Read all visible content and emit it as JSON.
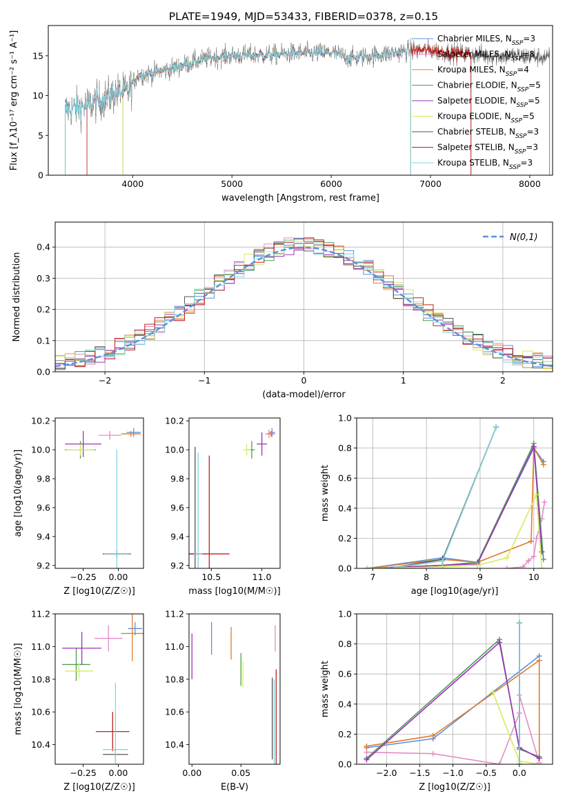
{
  "figure_title": "PLATE=1949, MJD=53433, FIBERID=0378, z=0.15",
  "colors": {
    "Chabrier MILES": "#5b8fd9",
    "Salpeter MILES": "#e58ac4",
    "Kroupa MILES": "#e07b2a",
    "Chabrier ELODIE": "#4d9a58",
    "Salpeter ELODIE": "#9a32b8",
    "Kroupa ELODIE": "#d2ec5a",
    "Chabrier STELIB": "#555555",
    "Salpeter STELIB": "#c31e1e",
    "Kroupa STELIB": "#7dd6e3"
  },
  "chart_data": [
    {
      "id": "spectrum",
      "type": "line",
      "xlabel": "wavelength [Angstrom, rest frame]",
      "ylabel": "Flux [f_λ10⁻¹⁷ erg cm⁻² s⁻¹ A⁻¹]",
      "xlim": [
        3150,
        8230
      ],
      "ylim": [
        0,
        18.8
      ],
      "xticks": [
        4000,
        5000,
        6000,
        7000,
        8000
      ],
      "yticks": [
        0,
        5,
        10,
        15
      ],
      "legend": [
        {
          "label": "Chabrier MILES, N_SSP=3",
          "model": "Chabrier MILES"
        },
        {
          "label": "Salpeter MILES, N_SSP=8",
          "model": "Salpeter MILES"
        },
        {
          "label": "Kroupa MILES, N_SSP=4",
          "model": "Kroupa MILES"
        },
        {
          "label": "Chabrier ELODIE, N_SSP=5",
          "model": "Chabrier ELODIE"
        },
        {
          "label": "Salpeter ELODIE, N_SSP=5",
          "model": "Salpeter ELODIE"
        },
        {
          "label": "Kroupa ELODIE, N_SSP=5",
          "model": "Kroupa ELODIE"
        },
        {
          "label": "Chabrier STELIB, N_SSP=3",
          "model": "Chabrier STELIB"
        },
        {
          "label": "Salpeter STELIB, N_SSP=3",
          "model": "Salpeter STELIB"
        },
        {
          "label": "Kroupa STELIB, N_SSP=3",
          "model": "Kroupa STELIB"
        }
      ],
      "legend_position": "upper right",
      "data_color": "#808080",
      "continuum": [
        [
          3320,
          8.2
        ],
        [
          3500,
          8.6
        ],
        [
          3700,
          9.5
        ],
        [
          3850,
          10.4
        ],
        [
          3950,
          10.4
        ],
        [
          4050,
          12.6
        ],
        [
          4200,
          12.8
        ],
        [
          4400,
          13.4
        ],
        [
          4600,
          14.2
        ],
        [
          4800,
          14.8
        ],
        [
          5000,
          15.0
        ],
        [
          5200,
          15.1
        ],
        [
          5400,
          15.1
        ],
        [
          5600,
          15.3
        ],
        [
          5800,
          15.3
        ],
        [
          6000,
          15.4
        ],
        [
          6200,
          14.7
        ],
        [
          6400,
          15.0
        ],
        [
          6600,
          15.3
        ],
        [
          6800,
          15.7
        ],
        [
          7000,
          15.7
        ],
        [
          7200,
          15.4
        ],
        [
          7400,
          15.2
        ],
        [
          7600,
          15.0
        ],
        [
          7800,
          15.0
        ],
        [
          8000,
          14.9
        ],
        [
          8200,
          14.8
        ]
      ],
      "model_ranges": {
        "Chabrier MILES": [
          3540,
          7410
        ],
        "Salpeter MILES": [
          3540,
          7410
        ],
        "Kroupa MILES": [
          3540,
          7410
        ],
        "Chabrier ELODIE": [
          3900,
          6800
        ],
        "Salpeter ELODIE": [
          3900,
          6800
        ],
        "Kroupa ELODIE": [
          3900,
          6800
        ],
        "Chabrier STELIB": [
          3320,
          8200
        ],
        "Salpeter STELIB": [
          3540,
          7410
        ],
        "Kroupa STELIB": [
          3320,
          6800
        ]
      }
    },
    {
      "id": "residuals",
      "type": "histogram",
      "xlabel": "(data-model)/error",
      "ylabel": "Normed distribution",
      "xlim": [
        -2.5,
        2.5
      ],
      "ylim": [
        0,
        0.48
      ],
      "xticks": [
        -2,
        -1,
        0,
        1,
        2
      ],
      "yticks": [
        0.0,
        0.1,
        0.2,
        0.3,
        0.4
      ],
      "grid": true,
      "reference_label": "N(0,1)",
      "reference_color": "#5b8fd9",
      "legend_position": "upper right"
    },
    {
      "id": "age_vs_Z",
      "type": "errorbar",
      "xlabel": "Z [log10(Z/Z☉)]",
      "ylabel": "age [log10(age/yr)]",
      "xlim": [
        -0.45,
        0.18
      ],
      "ylim": [
        9.18,
        10.22
      ],
      "xticks": [
        -0.25,
        0.0
      ],
      "yticks": [
        9.2,
        9.4,
        9.6,
        9.8,
        10.0,
        10.2
      ],
      "points": [
        {
          "model": "Chabrier MILES",
          "x": 0.11,
          "y": 10.12,
          "xerr": 0.05,
          "yerr": 0.03
        },
        {
          "model": "Salpeter MILES",
          "x": -0.06,
          "y": 10.1,
          "xerr": 0.08,
          "yerr": 0.03
        },
        {
          "model": "Kroupa MILES",
          "x": 0.09,
          "y": 10.11,
          "xerr": 0.07,
          "yerr": 0.02
        },
        {
          "model": "Chabrier ELODIE",
          "x": -0.27,
          "y": 10.0,
          "xerr": 0.11,
          "yerr": 0.06
        },
        {
          "model": "Salpeter ELODIE",
          "x": -0.25,
          "y": 10.04,
          "xerr": 0.13,
          "yerr": 0.09
        },
        {
          "model": "Kroupa ELODIE",
          "x": -0.27,
          "y": 10.0,
          "xerr": 0.1,
          "yerr": 0.04
        },
        {
          "model": "Chabrier STELIB",
          "x": -0.01,
          "y": 9.28,
          "xerr": 0.09,
          "yerr": 0.02
        },
        {
          "model": "Salpeter STELIB",
          "x": -0.01,
          "y": 9.28,
          "xerr": 0.1,
          "yerr": 0.02
        },
        {
          "model": "Kroupa STELIB",
          "x": -0.01,
          "y": 9.28,
          "xerr": 0.09,
          "yerr": 0.72
        }
      ]
    },
    {
      "id": "age_vs_mass",
      "type": "errorbar",
      "xlabel": "mass [log10(M/M☉)]",
      "ylabel": "",
      "xlim": [
        10.28,
        11.18
      ],
      "ylim": [
        9.18,
        10.22
      ],
      "xticks": [
        10.5,
        11.0
      ],
      "yticks": [
        9.2,
        9.4,
        9.6,
        9.8,
        10.0,
        10.2
      ],
      "points": [
        {
          "model": "Chabrier MILES",
          "x": 11.1,
          "y": 10.12,
          "xerr": 0.03,
          "yerr": 0.03
        },
        {
          "model": "Salpeter MILES",
          "x": 11.07,
          "y": 10.11,
          "xerr": 0.04,
          "yerr": 0.03
        },
        {
          "model": "Kroupa MILES",
          "x": 11.09,
          "y": 10.11,
          "xerr": 0.04,
          "yerr": 0.02
        },
        {
          "model": "Chabrier ELODIE",
          "x": 10.9,
          "y": 10.0,
          "xerr": 0.03,
          "yerr": 0.06
        },
        {
          "model": "Salpeter ELODIE",
          "x": 11.0,
          "y": 10.04,
          "xerr": 0.05,
          "yerr": 0.08
        },
        {
          "model": "Kroupa ELODIE",
          "x": 10.85,
          "y": 10.0,
          "xerr": 0.04,
          "yerr": 0.04
        },
        {
          "model": "Chabrier STELIB",
          "x": 10.34,
          "y": 9.28,
          "xerr": 0.06,
          "yerr": 0.74
        },
        {
          "model": "Salpeter STELIB",
          "x": 10.48,
          "y": 9.28,
          "xerr": 0.2,
          "yerr": 0.68
        },
        {
          "model": "Kroupa STELIB",
          "x": 10.37,
          "y": 9.28,
          "xerr": 0.04,
          "yerr": 0.7
        }
      ]
    },
    {
      "id": "weight_vs_age",
      "type": "line",
      "xlabel": "age [log10(age/yr)]",
      "ylabel": "mass weight",
      "xlim": [
        6.7,
        10.35
      ],
      "ylim": [
        0,
        1
      ],
      "xticks": [
        7,
        8,
        9,
        10
      ],
      "yticks": [
        0.0,
        0.2,
        0.4,
        0.6,
        0.8,
        1.0
      ],
      "grid": true,
      "series": [
        {
          "model": "Chabrier MILES",
          "x": [
            6.9,
            8.3,
            8.95,
            10.0,
            10.18
          ],
          "y": [
            0.0,
            0.07,
            0.04,
            0.8,
            0.71
          ]
        },
        {
          "model": "Salpeter MILES",
          "x": [
            9.5,
            9.8,
            9.9,
            10.0,
            10.05,
            10.15,
            10.2
          ],
          "y": [
            0.0,
            0.01,
            0.05,
            0.08,
            0.2,
            0.33,
            0.44
          ]
        },
        {
          "model": "Kroupa MILES",
          "x": [
            6.9,
            8.3,
            8.95,
            9.95,
            10.0,
            10.18
          ],
          "y": [
            0.0,
            0.06,
            0.04,
            0.18,
            0.8,
            0.69
          ]
        },
        {
          "model": "Chabrier ELODIE",
          "x": [
            6.9,
            8.3,
            8.95,
            10.0,
            10.18
          ],
          "y": [
            0.0,
            0.02,
            0.04,
            0.83,
            0.06
          ]
        },
        {
          "model": "Salpeter ELODIE",
          "x": [
            6.9,
            8.3,
            8.95,
            10.0,
            10.15
          ],
          "y": [
            0.0,
            0.02,
            0.03,
            0.81,
            0.11
          ]
        },
        {
          "model": "Kroupa ELODIE",
          "x": [
            6.9,
            8.3,
            8.95,
            9.5,
            10.05,
            10.15
          ],
          "y": [
            0.0,
            0.01,
            0.02,
            0.07,
            0.49,
            0.0
          ]
        },
        {
          "model": "Chabrier STELIB",
          "x": [
            7.3,
            8.3,
            9.3
          ],
          "y": [
            0.0,
            0.06,
            0.94
          ]
        },
        {
          "model": "Salpeter STELIB",
          "x": [
            7.3,
            8.3,
            9.3
          ],
          "y": [
            0.0,
            0.05,
            0.94
          ]
        },
        {
          "model": "Kroupa STELIB",
          "x": [
            7.3,
            8.3,
            9.3
          ],
          "y": [
            0.0,
            0.05,
            0.94
          ]
        }
      ]
    },
    {
      "id": "mass_vs_Z",
      "type": "errorbar",
      "xlabel": "Z [log10(Z/Z☉)]",
      "ylabel": "mass [log10(M/M☉)]",
      "xlim": [
        -0.45,
        0.18
      ],
      "ylim": [
        10.28,
        11.2
      ],
      "xticks": [
        -0.25,
        0.0
      ],
      "yticks": [
        10.4,
        10.6,
        10.8,
        11.0,
        11.2
      ],
      "points": [
        {
          "model": "Chabrier MILES",
          "x": 0.12,
          "y": 11.11,
          "xerr": 0.05,
          "yerr": 0.04
        },
        {
          "model": "Salpeter MILES",
          "x": -0.07,
          "y": 11.05,
          "xerr": 0.1,
          "yerr": 0.08
        },
        {
          "model": "Kroupa MILES",
          "x": 0.1,
          "y": 11.08,
          "xerr": 0.08,
          "yerr": 0.17
        },
        {
          "model": "Chabrier ELODIE",
          "x": -0.3,
          "y": 10.89,
          "xerr": 0.1,
          "yerr": 0.1
        },
        {
          "model": "Salpeter ELODIE",
          "x": -0.26,
          "y": 10.99,
          "xerr": 0.14,
          "yerr": 0.1
        },
        {
          "model": "Kroupa ELODIE",
          "x": -0.28,
          "y": 10.85,
          "xerr": 0.1,
          "yerr": 0.05
        },
        {
          "model": "Chabrier STELIB",
          "x": -0.02,
          "y": 10.34,
          "xerr": 0.09,
          "yerr": 0.04
        },
        {
          "model": "Salpeter STELIB",
          "x": -0.04,
          "y": 10.48,
          "xerr": 0.12,
          "yerr": 0.12
        },
        {
          "model": "Kroupa STELIB",
          "x": -0.02,
          "y": 10.37,
          "xerr": 0.09,
          "yerr": 0.41
        }
      ]
    },
    {
      "id": "mass_vs_ebv",
      "type": "errorbar",
      "xlabel": "E(B-V)",
      "ylabel": "",
      "xlim": [
        -0.003,
        0.09
      ],
      "ylim": [
        10.28,
        11.2
      ],
      "xticks": [
        0.0,
        0.05
      ],
      "yticks": [
        10.4,
        10.6,
        10.8,
        11.0,
        11.2
      ],
      "points": [
        {
          "model": "Chabrier MILES",
          "x": 0.02,
          "y": 11.05,
          "xerr": 0,
          "yerr": 0.1
        },
        {
          "model": "Salpeter MILES",
          "x": 0.085,
          "y": 11.05,
          "xerr": 0,
          "yerr": 0.08
        },
        {
          "model": "Kroupa MILES",
          "x": 0.04,
          "y": 11.02,
          "xerr": 0,
          "yerr": 0.1
        },
        {
          "model": "Chabrier ELODIE",
          "x": 0.05,
          "y": 10.86,
          "xerr": 0,
          "yerr": 0.1
        },
        {
          "model": "Salpeter ELODIE",
          "x": 0.0,
          "y": 10.94,
          "xerr": 0,
          "yerr": 0.14
        },
        {
          "model": "Kroupa ELODIE",
          "x": 0.052,
          "y": 10.83,
          "xerr": 0,
          "yerr": 0.08
        },
        {
          "model": "Chabrier STELIB",
          "x": 0.082,
          "y": 10.56,
          "xerr": 0,
          "yerr": 0.25
        },
        {
          "model": "Salpeter STELIB",
          "x": 0.086,
          "y": 10.56,
          "xerr": 0,
          "yerr": 0.3
        },
        {
          "model": "Kroupa STELIB",
          "x": 0.084,
          "y": 10.5,
          "xerr": 0,
          "yerr": 0.3
        }
      ]
    },
    {
      "id": "weight_vs_Z",
      "type": "line",
      "xlabel": "Z [log10(Z/Z☉)]",
      "ylabel": "mass weight",
      "xlim": [
        -2.45,
        0.5
      ],
      "ylim": [
        0,
        1
      ],
      "xticks": [
        -2.0,
        -1.5,
        -1.0,
        -0.5,
        0.0
      ],
      "yticks": [
        0.0,
        0.2,
        0.4,
        0.6,
        0.8,
        1.0
      ],
      "grid": true,
      "series": [
        {
          "model": "Chabrier MILES",
          "x": [
            -2.3,
            -1.3,
            0.3
          ],
          "y": [
            0.11,
            0.17,
            0.72
          ]
        },
        {
          "model": "Salpeter MILES",
          "x": [
            -2.3,
            -1.3,
            -0.3,
            0.0,
            0.0,
            0.3
          ],
          "y": [
            0.08,
            0.07,
            0.0,
            0.34,
            0.46,
            0.01
          ]
        },
        {
          "model": "Kroupa MILES",
          "x": [
            -2.3,
            -1.3,
            0.3,
            0.3
          ],
          "y": [
            0.12,
            0.19,
            0.69,
            0.04
          ]
        },
        {
          "model": "Chabrier ELODIE",
          "x": [
            -2.3,
            -0.3,
            0.0,
            0.3
          ],
          "y": [
            0.04,
            0.83,
            0.1,
            0.05
          ]
        },
        {
          "model": "Salpeter ELODIE",
          "x": [
            -2.3,
            -0.3,
            0.0,
            0.3
          ],
          "y": [
            0.03,
            0.81,
            0.11,
            0.04
          ]
        },
        {
          "model": "Kroupa ELODIE",
          "x": [
            -0.4,
            0.0,
            0.3
          ],
          "y": [
            0.48,
            0.02,
            0.0
          ]
        },
        {
          "model": "Chabrier STELIB",
          "x": [
            0.0,
            0.0
          ],
          "y": [
            0.0,
            0.94
          ]
        },
        {
          "model": "Salpeter STELIB",
          "x": [
            0.0,
            0.0
          ],
          "y": [
            0.0,
            0.94
          ]
        },
        {
          "model": "Kroupa STELIB",
          "x": [
            0.0,
            0.0
          ],
          "y": [
            0.0,
            0.94
          ]
        }
      ]
    }
  ]
}
